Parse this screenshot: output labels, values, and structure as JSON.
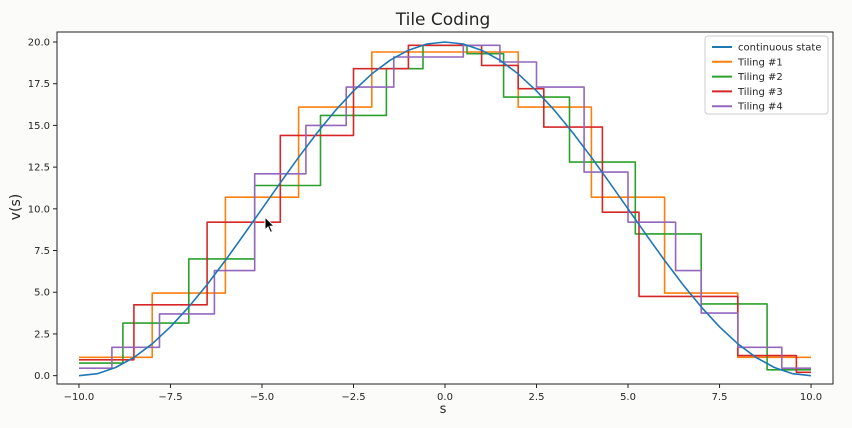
{
  "chart_data": {
    "type": "line",
    "title": "Tile Coding",
    "xlabel": "s",
    "ylabel": "v(s)",
    "xlim": [
      -10.6,
      10.6
    ],
    "ylim": [
      -0.5,
      20.6
    ],
    "xticks": [
      -10.0,
      -7.5,
      -5.0,
      -2.5,
      0.0,
      2.5,
      5.0,
      7.5,
      10.0
    ],
    "xtick_labels": [
      "−10.0",
      "−7.5",
      "−5.0",
      "−2.5",
      "0.0",
      "2.5",
      "5.0",
      "7.5",
      "10.0"
    ],
    "yticks": [
      0.0,
      2.5,
      5.0,
      7.5,
      10.0,
      12.5,
      15.0,
      17.5,
      20.0
    ],
    "ytick_labels": [
      "0.0",
      "2.5",
      "5.0",
      "7.5",
      "10.0",
      "12.5",
      "15.0",
      "17.5",
      "20.0"
    ],
    "grid": false,
    "legend_position": "top-right",
    "series": [
      {
        "name": "continuous state",
        "color": "#1f77b4",
        "style": "curve",
        "x": [
          -10,
          -9.5,
          -9,
          -8.5,
          -8,
          -7.5,
          -7,
          -6.5,
          -6,
          -5.5,
          -5,
          -4.5,
          -4,
          -3.5,
          -3,
          -2.5,
          -2,
          -1.5,
          -1,
          -0.5,
          0,
          0.5,
          1,
          1.5,
          2,
          2.5,
          3,
          3.5,
          4,
          4.5,
          5,
          5.5,
          6,
          6.5,
          7,
          7.5,
          8,
          8.5,
          9,
          9.5,
          10
        ],
        "y": [
          0.0,
          0.12,
          0.49,
          1.09,
          1.91,
          2.93,
          4.12,
          5.46,
          6.91,
          8.44,
          10.0,
          11.56,
          13.09,
          14.54,
          15.88,
          17.07,
          18.09,
          18.91,
          19.51,
          19.88,
          20.0,
          19.88,
          19.51,
          18.91,
          18.09,
          17.07,
          15.88,
          14.54,
          13.09,
          11.56,
          10.0,
          8.44,
          6.91,
          5.46,
          4.12,
          2.93,
          1.91,
          1.09,
          0.49,
          0.12,
          0.0
        ]
      },
      {
        "name": "Tiling #1",
        "color": "#ff7f0e",
        "style": "step",
        "x": [
          -10,
          -8,
          -8,
          -6,
          -6,
          -4,
          -4,
          -2,
          -2,
          0,
          0,
          2,
          2,
          4,
          4,
          6,
          6,
          8,
          8,
          10
        ],
        "y": [
          1.1,
          1.1,
          4.95,
          4.95,
          10.7,
          10.7,
          16.1,
          16.1,
          19.4,
          19.4,
          19.4,
          19.4,
          16.1,
          16.1,
          10.7,
          10.7,
          4.95,
          4.95,
          1.1,
          1.1
        ]
      },
      {
        "name": "Tiling #2",
        "color": "#2ca02c",
        "style": "step",
        "x": [
          -10,
          -8.8,
          -8.8,
          -7,
          -7,
          -5.2,
          -5.2,
          -3.4,
          -3.4,
          -1.6,
          -1.6,
          -0.6,
          -0.6,
          0.6,
          0.6,
          1.6,
          1.6,
          3.4,
          3.4,
          5.2,
          5.2,
          7,
          7,
          8.8,
          8.8,
          10
        ],
        "y": [
          0.75,
          0.75,
          3.15,
          3.15,
          7.0,
          7.0,
          11.4,
          11.4,
          15.6,
          15.6,
          18.4,
          18.4,
          19.8,
          19.8,
          19.3,
          19.3,
          16.7,
          16.7,
          12.8,
          12.8,
          8.5,
          8.5,
          4.3,
          4.3,
          0.35,
          0.35
        ]
      },
      {
        "name": "Tiling #3",
        "color": "#d62728",
        "style": "step",
        "x": [
          -10,
          -8.5,
          -8.5,
          -6.5,
          -6.5,
          -4.5,
          -4.5,
          -2.5,
          -2.5,
          -1,
          -1,
          1,
          1,
          2,
          2,
          2.7,
          2.7,
          4.3,
          4.3,
          5.3,
          5.3,
          6.8,
          6.8,
          8,
          8,
          9.6,
          9.6,
          10
        ],
        "y": [
          0.95,
          0.95,
          4.25,
          4.25,
          9.2,
          9.2,
          14.4,
          14.4,
          18.4,
          18.4,
          19.8,
          19.8,
          18.6,
          18.6,
          17.2,
          17.2,
          14.9,
          14.9,
          9.8,
          9.8,
          4.75,
          4.75,
          4.75,
          4.75,
          1.2,
          1.2,
          0.2,
          0.2
        ]
      },
      {
        "name": "Tiling #4",
        "color": "#9467bd",
        "style": "step",
        "x": [
          -10,
          -9.1,
          -9.1,
          -7.8,
          -7.8,
          -6.3,
          -6.3,
          -5.2,
          -5.2,
          -3.8,
          -3.8,
          -2.7,
          -2.7,
          -1.4,
          -1.4,
          0.5,
          0.5,
          1.5,
          1.5,
          2.5,
          2.5,
          3.8,
          3.8,
          5.0,
          5.0,
          6.3,
          6.3,
          7.0,
          7.0,
          8.0,
          8.0,
          9.2,
          9.2,
          10
        ],
        "y": [
          0.45,
          0.45,
          1.7,
          1.7,
          3.7,
          3.7,
          6.3,
          6.3,
          12.1,
          12.1,
          15.0,
          15.0,
          17.3,
          17.3,
          19.1,
          19.1,
          19.8,
          19.8,
          18.8,
          18.8,
          17.3,
          17.3,
          12.2,
          12.2,
          9.2,
          9.2,
          6.3,
          6.3,
          3.75,
          3.75,
          1.7,
          1.7,
          0.45,
          0.45
        ]
      }
    ]
  }
}
